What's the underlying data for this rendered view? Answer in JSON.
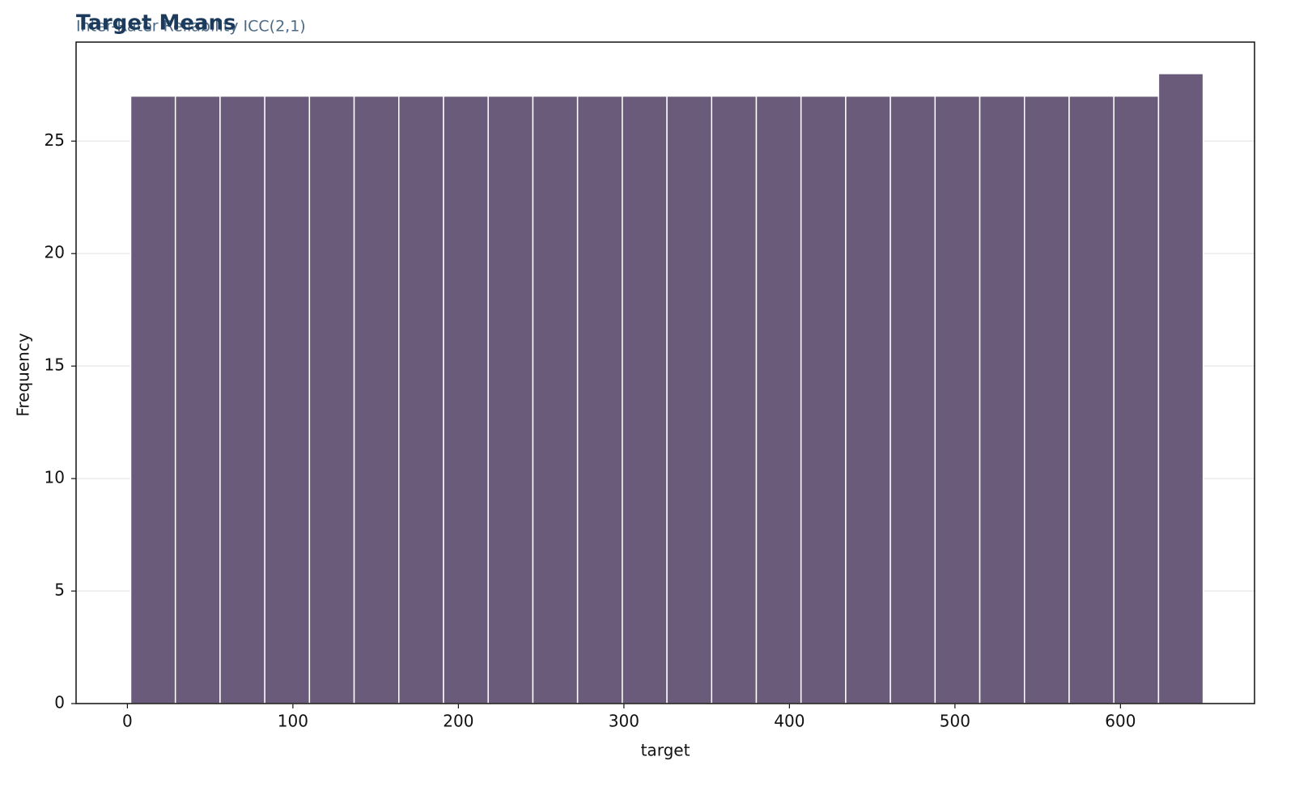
{
  "chart_data": {
    "type": "histogram",
    "title": "Target Means",
    "subtitle": "Inter-Rater Reliability ICC(2,1)",
    "x_label": "target",
    "y_label": "Frequency",
    "bins": [
      2,
      29,
      56,
      83,
      110,
      137,
      164,
      191,
      218,
      245,
      272,
      299,
      326,
      353,
      380,
      407,
      434,
      461,
      488,
      515,
      542,
      569,
      596,
      623,
      650
    ],
    "values": [
      27,
      27,
      27,
      27,
      27,
      27,
      27,
      27,
      27,
      27,
      27,
      27,
      27,
      27,
      27,
      27,
      27,
      27,
      27,
      27,
      27,
      27,
      27,
      28
    ],
    "color": "#6b5b7b",
    "xlim": [
      -31,
      681
    ],
    "ylim": [
      0,
      29.4
    ],
    "xticks": [
      0,
      100,
      200,
      300,
      400,
      500,
      600
    ],
    "yticks": [
      0,
      5,
      10,
      15,
      20,
      25
    ],
    "grid": true
  }
}
